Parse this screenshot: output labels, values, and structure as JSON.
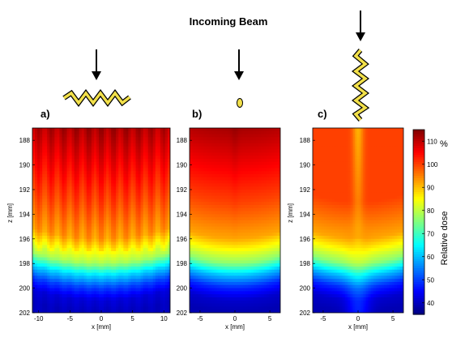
{
  "figure": {
    "title": "Incoming Beam",
    "colorbar_label": "Relative dose",
    "colorbar_unit": "%",
    "colorbar_ticks": [
      "40",
      "50",
      "60",
      "70",
      "80",
      "90",
      "100",
      "110"
    ]
  },
  "chart_data": [
    {
      "type": "heatmap",
      "panel_label": "a)",
      "xlabel": "x  [mm]",
      "ylabel": "z  [mm]",
      "xlim": [
        -11,
        11
      ],
      "ylim": [
        187,
        202
      ],
      "x_ticks": [
        "-10",
        "-5",
        "0",
        "5",
        "10"
      ],
      "y_ticks": [
        "188",
        "190",
        "192",
        "194",
        "196",
        "198",
        "200",
        "202"
      ],
      "ripple_period_mm": 2.0,
      "dose_profile": [
        {
          "z": 187,
          "dose": 112
        },
        {
          "z": 190,
          "dose": 106
        },
        {
          "z": 193,
          "dose": 100
        },
        {
          "z": 196,
          "dose": 93
        },
        {
          "z": 198,
          "dose": 78
        },
        {
          "z": 199,
          "dose": 62
        },
        {
          "z": 200,
          "dose": 50
        },
        {
          "z": 201,
          "dose": 42
        },
        {
          "z": 202,
          "dose": 40
        }
      ]
    },
    {
      "type": "heatmap",
      "panel_label": "b)",
      "xlabel": "x  [mm]",
      "ylabel": "",
      "xlim": [
        -6.5,
        6.5
      ],
      "ylim": [
        187,
        202
      ],
      "x_ticks": [
        "-5",
        "0",
        "5"
      ],
      "y_ticks": [
        "188",
        "190",
        "192",
        "194",
        "196",
        "198",
        "200",
        "202"
      ],
      "center_peak": 0.5,
      "dose_profile": [
        {
          "z": 187,
          "dose": 112
        },
        {
          "z": 190,
          "dose": 106
        },
        {
          "z": 193,
          "dose": 100
        },
        {
          "z": 196,
          "dose": 92
        },
        {
          "z": 198,
          "dose": 76
        },
        {
          "z": 199,
          "dose": 60
        },
        {
          "z": 200,
          "dose": 48
        },
        {
          "z": 201,
          "dose": 41
        },
        {
          "z": 202,
          "dose": 39
        }
      ]
    },
    {
      "type": "heatmap",
      "panel_label": "c)",
      "xlabel": "x  [mm]",
      "ylabel": "z  [mm]",
      "xlim": [
        -6.5,
        6.5
      ],
      "ylim": [
        187,
        202
      ],
      "x_ticks": [
        "-5",
        "0",
        "5"
      ],
      "y_ticks": [
        "188",
        "190",
        "192",
        "194",
        "196",
        "198",
        "200",
        "202"
      ],
      "center_peak": 1.0,
      "dose_profile": [
        {
          "z": 187,
          "dose": 112
        },
        {
          "z": 190,
          "dose": 106
        },
        {
          "z": 193,
          "dose": 100
        },
        {
          "z": 196,
          "dose": 92
        },
        {
          "z": 198,
          "dose": 76
        },
        {
          "z": 199,
          "dose": 60
        },
        {
          "z": 200,
          "dose": 48
        },
        {
          "z": 201,
          "dose": 41
        },
        {
          "z": 202,
          "dose": 39
        }
      ]
    }
  ]
}
